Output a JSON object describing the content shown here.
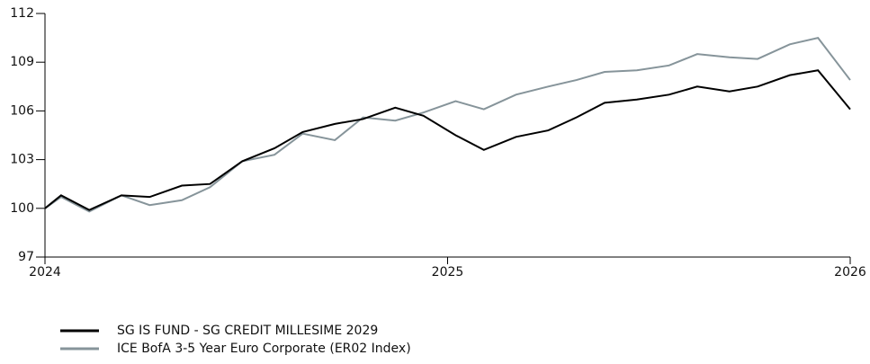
{
  "chart_data": {
    "type": "line",
    "x": [
      2024.0,
      2024.04,
      2024.11,
      2024.19,
      2024.26,
      2024.34,
      2024.41,
      2024.49,
      2024.57,
      2024.64,
      2024.72,
      2024.79,
      2024.87,
      2024.94,
      2025.02,
      2025.09,
      2025.17,
      2025.25,
      2025.32,
      2025.39,
      2025.47,
      2025.55,
      2025.62,
      2025.7,
      2025.77,
      2025.85,
      2025.92,
      2026.0
    ],
    "series": [
      {
        "name": "SG IS FUND - SG CREDIT MILLESIME 2029",
        "color": "#000000",
        "values": [
          100,
          100.8,
          99.9,
          100.8,
          100.7,
          101.4,
          101.5,
          102.9,
          103.7,
          104.7,
          105.2,
          105.5,
          106.2,
          105.7,
          104.5,
          103.6,
          104.4,
          104.8,
          105.6,
          106.5,
          106.7,
          107.0,
          107.5,
          107.2,
          107.5,
          108.2,
          108.5,
          106.1
        ]
      },
      {
        "name": "ICE BofA 3-5 Year Euro Corporate (ER02 Index)",
        "color": "#86949a",
        "values": [
          100,
          100.7,
          99.8,
          100.8,
          100.2,
          100.5,
          101.3,
          102.9,
          103.3,
          104.6,
          104.2,
          105.6,
          105.4,
          105.9,
          106.6,
          106.1,
          107.0,
          107.5,
          107.9,
          108.4,
          108.5,
          108.8,
          109.5,
          109.3,
          109.2,
          110.1,
          110.5,
          107.9
        ]
      }
    ],
    "xlim": [
      2024,
      2026
    ],
    "xticks": [
      2024,
      2025,
      2026
    ],
    "ylim": [
      97,
      112
    ],
    "yticks": [
      97,
      100,
      103,
      106,
      109,
      112
    ]
  }
}
